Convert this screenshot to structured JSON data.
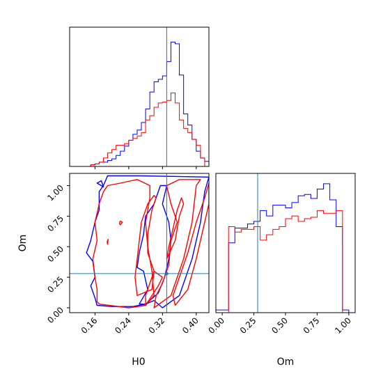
{
  "chart_data": [
    {
      "type": "histogram",
      "panel": "H0 marginal",
      "xlim": [
        0.1,
        0.43
      ],
      "bins_x": [
        0.125,
        0.135,
        0.145,
        0.155,
        0.165,
        0.175,
        0.185,
        0.195,
        0.205,
        0.215,
        0.225,
        0.235,
        0.245,
        0.255,
        0.265,
        0.275,
        0.285,
        0.295,
        0.305,
        0.315,
        0.325,
        0.335,
        0.345,
        0.355,
        0.365,
        0.375,
        0.385,
        0.395,
        0.405,
        0.415,
        0.425
      ],
      "series": [
        {
          "color": "#0000ff",
          "values": [
            0,
            0,
            0,
            2,
            3,
            5,
            5,
            7,
            9,
            13,
            18,
            24,
            31,
            38,
            43,
            52,
            68,
            88,
            100,
            103,
            107,
            124,
            147,
            145,
            108,
            62,
            49,
            32,
            18,
            10,
            6
          ]
        },
        {
          "color": "#ff0000",
          "values": [
            0,
            0,
            0,
            2,
            3,
            5,
            10,
            16,
            20,
            25,
            25,
            27,
            31,
            33,
            36,
            40,
            55,
            60,
            70,
            75,
            76,
            78,
            87,
            75,
            55,
            45,
            40,
            32,
            25,
            10,
            0
          ]
        }
      ],
      "truth_line": {
        "x": 0.33,
        "color": "#1f77b4"
      }
    },
    {
      "type": "contour",
      "panel": "H0 vs Om",
      "xlabel": "H0",
      "ylabel": "Om",
      "xlim": [
        0.1,
        0.43
      ],
      "ylim": [
        -0.04,
        1.1
      ],
      "xticks": [
        "0.16",
        "0.24",
        "0.32",
        "0.40"
      ],
      "yticks": [
        "0.00",
        "0.25",
        "0.50",
        "0.75",
        "1.00"
      ],
      "truth_point": {
        "x": 0.33,
        "y": 0.28,
        "color": "#1f77b4"
      },
      "contours": [
        {
          "color": "#0000ff",
          "path": [
            [
              0.32,
              0.0
            ],
            [
              0.36,
              0.1
            ],
            [
              0.39,
              0.4
            ],
            [
              0.41,
              0.7
            ],
            [
              0.42,
              0.95
            ],
            [
              0.43,
              1.07
            ],
            [
              0.27,
              1.08
            ],
            [
              0.19,
              1.08
            ],
            [
              0.18,
              1.0
            ],
            [
              0.17,
              0.95
            ],
            [
              0.17,
              0.8
            ],
            [
              0.16,
              0.7
            ],
            [
              0.15,
              0.55
            ],
            [
              0.14,
              0.45
            ],
            [
              0.155,
              0.38
            ],
            [
              0.16,
              0.25
            ],
            [
              0.15,
              0.18
            ],
            [
              0.16,
              0.08
            ],
            [
              0.165,
              0.02
            ],
            [
              0.2,
              0.01
            ],
            [
              0.25,
              0.01
            ],
            [
              0.28,
              0.03
            ],
            [
              0.3,
              0.06
            ]
          ]
        },
        {
          "color": "#0000ff",
          "path": [
            [
              0.165,
              1.02
            ],
            [
              0.175,
              1.0
            ],
            [
              0.18,
              0.99
            ],
            [
              0.175,
              1.04
            ]
          ]
        },
        {
          "color": "#0000ff",
          "path": [
            [
              0.265,
              0.03
            ],
            [
              0.285,
              0.15
            ],
            [
              0.275,
              0.3
            ],
            [
              0.26,
              0.33
            ],
            [
              0.265,
              0.45
            ],
            [
              0.275,
              0.6
            ],
            [
              0.28,
              0.75
            ],
            [
              0.3,
              0.85
            ],
            [
              0.315,
              1.0
            ],
            [
              0.33,
              1.0
            ],
            [
              0.32,
              0.85
            ],
            [
              0.335,
              0.7
            ],
            [
              0.34,
              0.55
            ],
            [
              0.335,
              0.4
            ],
            [
              0.325,
              0.25
            ],
            [
              0.31,
              0.12
            ],
            [
              0.28,
              0.03
            ]
          ]
        },
        {
          "color": "#ff0000",
          "path": [
            [
              0.17,
              0.03
            ],
            [
              0.24,
              0.0
            ],
            [
              0.28,
              0.02
            ],
            [
              0.3,
              0.1
            ],
            [
              0.295,
              0.3
            ],
            [
              0.285,
              0.5
            ],
            [
              0.28,
              0.7
            ],
            [
              0.29,
              0.9
            ],
            [
              0.29,
              1.0
            ],
            [
              0.26,
              1.05
            ],
            [
              0.22,
              1.02
            ],
            [
              0.19,
              1.0
            ],
            [
              0.18,
              0.95
            ],
            [
              0.17,
              0.85
            ],
            [
              0.16,
              0.7
            ],
            [
              0.165,
              0.55
            ],
            [
              0.155,
              0.4
            ],
            [
              0.16,
              0.25
            ],
            [
              0.165,
              0.15
            ],
            [
              0.165,
              0.05
            ]
          ]
        },
        {
          "color": "#ff0000",
          "path": [
            [
              0.3,
              0.0
            ],
            [
              0.34,
              0.1
            ],
            [
              0.37,
              0.4
            ],
            [
              0.39,
              0.7
            ],
            [
              0.4,
              1.0
            ],
            [
              0.41,
              1.05
            ],
            [
              0.36,
              1.05
            ],
            [
              0.33,
              1.0
            ],
            [
              0.34,
              0.85
            ],
            [
              0.355,
              0.7
            ],
            [
              0.34,
              0.55
            ],
            [
              0.335,
              0.35
            ],
            [
              0.32,
              0.2
            ],
            [
              0.305,
              0.1
            ]
          ]
        },
        {
          "color": "#ff0000",
          "path": [
            [
              0.26,
              0.1
            ],
            [
              0.295,
              0.15
            ],
            [
              0.3,
              0.3
            ],
            [
              0.285,
              0.45
            ],
            [
              0.285,
              0.6
            ],
            [
              0.295,
              0.8
            ],
            [
              0.305,
              0.9
            ],
            [
              0.3,
              0.92
            ],
            [
              0.285,
              0.85
            ],
            [
              0.27,
              0.7
            ],
            [
              0.265,
              0.55
            ],
            [
              0.26,
              0.4
            ],
            [
              0.255,
              0.25
            ]
          ]
        },
        {
          "color": "#ff0000",
          "path": [
            [
              0.33,
              0.4
            ],
            [
              0.35,
              0.55
            ],
            [
              0.36,
              0.75
            ],
            [
              0.37,
              0.85
            ],
            [
              0.365,
              0.9
            ],
            [
              0.355,
              0.8
            ],
            [
              0.345,
              0.65
            ],
            [
              0.335,
              0.5
            ]
          ]
        },
        {
          "color": "#ff0000",
          "path": [
            [
              0.35,
              0.02
            ],
            [
              0.38,
              0.15
            ],
            [
              0.4,
              0.4
            ],
            [
              0.42,
              0.7
            ],
            [
              0.43,
              0.85
            ],
            [
              0.43,
              1.02
            ],
            [
              0.42,
              0.9
            ],
            [
              0.4,
              0.7
            ],
            [
              0.38,
              0.45
            ],
            [
              0.36,
              0.25
            ],
            [
              0.345,
              0.1
            ]
          ]
        },
        {
          "color": "#ff0000",
          "path": [
            [
              0.28,
              0.02
            ],
            [
              0.31,
              0.18
            ],
            [
              0.32,
              0.25
            ],
            [
              0.3,
              0.3
            ],
            [
              0.29,
              0.2
            ],
            [
              0.28,
              0.1
            ]
          ]
        },
        {
          "color": "#ff0000",
          "path": [
            [
              0.19,
              0.52
            ],
            [
              0.191,
              0.56
            ],
            [
              0.189,
              0.54
            ]
          ]
        },
        {
          "color": "#ff0000",
          "path": [
            [
              0.22,
              0.68
            ],
            [
              0.225,
              0.7
            ],
            [
              0.22,
              0.71
            ],
            [
              0.218,
              0.69
            ]
          ]
        }
      ]
    },
    {
      "type": "histogram",
      "panel": "Om marginal",
      "xlabel": "Om",
      "xlim": [
        -0.05,
        1.05
      ],
      "xticks": [
        "0.00",
        "0.25",
        "0.50",
        "0.75",
        "1.00"
      ],
      "bins_x": [
        -0.025,
        0.025,
        0.075,
        0.125,
        0.175,
        0.225,
        0.275,
        0.325,
        0.375,
        0.425,
        0.475,
        0.525,
        0.575,
        0.625,
        0.675,
        0.725,
        0.775,
        0.825,
        0.875,
        0.925,
        0.975,
        1.025
      ],
      "series": [
        {
          "color": "#0000ff",
          "values": [
            2,
            2,
            52,
            63,
            63,
            66,
            68,
            76,
            72,
            80,
            80,
            78,
            82,
            87,
            88,
            85,
            92,
            96,
            84,
            64,
            2,
            0
          ]
        },
        {
          "color": "#ff0000",
          "values": [
            0,
            0,
            64,
            60,
            62,
            62,
            64,
            54,
            58,
            62,
            64,
            70,
            72,
            68,
            70,
            71,
            76,
            74,
            74,
            76,
            0,
            0
          ]
        }
      ],
      "truth_line": {
        "x": 0.28,
        "color": "#1f77b4"
      }
    }
  ]
}
